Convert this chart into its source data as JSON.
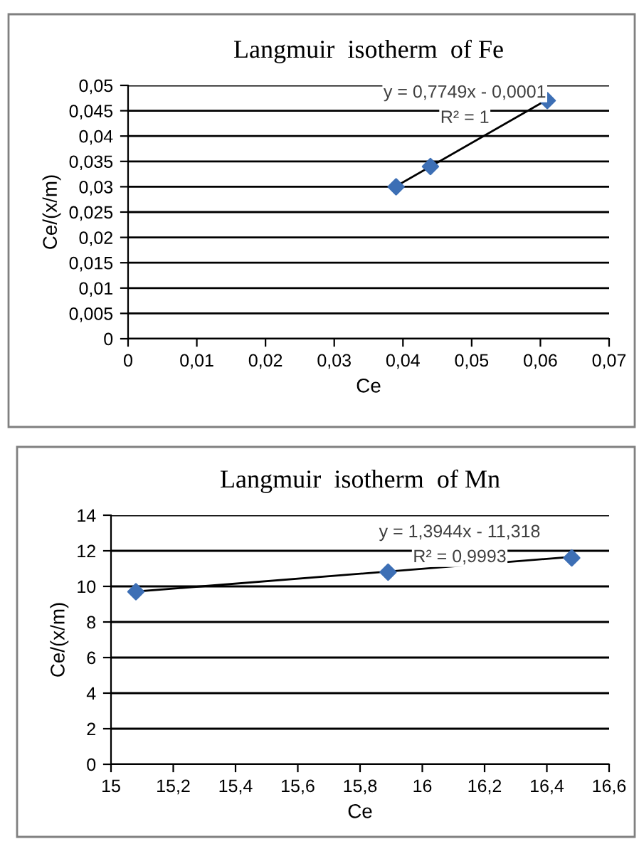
{
  "chart_data": [
    {
      "type": "scatter",
      "title": "Langmuir  isotherm  of Fe",
      "xlabel": "Ce",
      "ylabel": "Ce/(x/m)",
      "series": [
        {
          "color": "#3d6fb5",
          "marker": "diamond",
          "x": [
            0.039,
            0.044,
            0.061
          ],
          "values": [
            0.03,
            0.034,
            0.047
          ]
        },
        {
          "type": "line",
          "color": "#000000",
          "marker": "none",
          "x": [
            0.039,
            0.061
          ],
          "values": [
            0.0301,
            0.0472
          ]
        }
      ],
      "xlim": [
        0,
        0.07
      ],
      "ylim": [
        0,
        0.05
      ],
      "xticks": [
        0,
        {
          "value": 0.01,
          "label": "0,01"
        },
        {
          "value": 0.02,
          "label": "0,02"
        },
        {
          "value": 0.03,
          "label": "0,03"
        },
        {
          "value": 0.04,
          "label": "0,04"
        },
        {
          "value": 0.05,
          "label": "0,05"
        },
        {
          "value": 0.06,
          "label": "0,06"
        },
        {
          "value": 0.07,
          "label": "0,07"
        }
      ],
      "yticks": [
        0,
        {
          "value": 0.005,
          "label": "0,005"
        },
        {
          "value": 0.01,
          "label": "0,01"
        },
        {
          "value": 0.015,
          "label": "0,015"
        },
        {
          "value": 0.02,
          "label": "0,02"
        },
        {
          "value": 0.025,
          "label": "0,025"
        },
        {
          "value": 0.03,
          "label": "0,03"
        },
        {
          "value": 0.035,
          "label": "0,035"
        },
        {
          "value": 0.04,
          "label": "0,04"
        },
        {
          "value": 0.045,
          "label": "0,045"
        },
        {
          "value": 0.05,
          "label": "0,05"
        }
      ],
      "grid": "y",
      "legend": false,
      "annotations": [
        "y = 0,7749x - 0,0001",
        "R² = 1"
      ]
    },
    {
      "type": "scatter",
      "title": "Langmuir  isotherm  of Mn",
      "xlabel": "Ce",
      "ylabel": "Ce/(x/m)",
      "series": [
        {
          "color": "#3d6fb5",
          "marker": "diamond",
          "x": [
            15.08,
            15.89,
            16.48
          ],
          "values": [
            9.7,
            10.8,
            11.6
          ]
        },
        {
          "type": "line",
          "color": "#000000",
          "marker": "none",
          "x": [
            15.08,
            16.48
          ],
          "values": [
            9.71,
            11.66
          ]
        }
      ],
      "xlim": [
        15,
        16.6
      ],
      "ylim": [
        0,
        14
      ],
      "xticks": [
        15,
        {
          "value": 15.2,
          "label": "15,2"
        },
        {
          "value": 15.4,
          "label": "15,4"
        },
        {
          "value": 15.6,
          "label": "15,6"
        },
        {
          "value": 15.8,
          "label": "15,8"
        },
        16,
        {
          "value": 16.2,
          "label": "16,2"
        },
        {
          "value": 16.4,
          "label": "16,4"
        },
        {
          "value": 16.6,
          "label": "16,6"
        }
      ],
      "yticks": [
        0,
        2,
        4,
        6,
        8,
        10,
        12,
        14
      ],
      "grid": "y",
      "legend": false,
      "annotations": [
        "y = 1,3944x - 11,318",
        "R² = 0,9993"
      ]
    }
  ]
}
